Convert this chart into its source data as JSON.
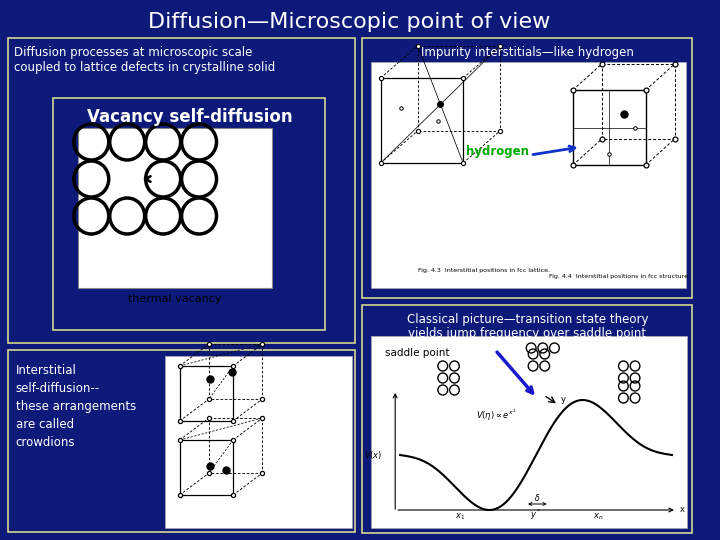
{
  "title": "Diffusion—Microscopic point of view",
  "background_color": "#0d1a7a",
  "title_color": "white",
  "title_fontsize": 16,
  "box_edge_color": "#d4d890",
  "text_color": "white",
  "top_left_label": "Diffusion processes at microscopic scale\ncoupled to lattice defects in crystalline solid",
  "vacancy_label": "Vacancy self-diffusion",
  "thermal_vacancy_label": "thermal vacancy",
  "top_right_label": "Impurity interstitials—like hydrogen",
  "hydrogen_label": "hydrogen",
  "bottom_right_label1": "Classical picture—transition state theory",
  "bottom_right_label2": "yields jump frequency over saddle point",
  "saddle_point_label": "saddle point",
  "bottom_left_label": "Interstitial\nself-diffusion--\nthese arrangements\nare called\ncrowdions"
}
